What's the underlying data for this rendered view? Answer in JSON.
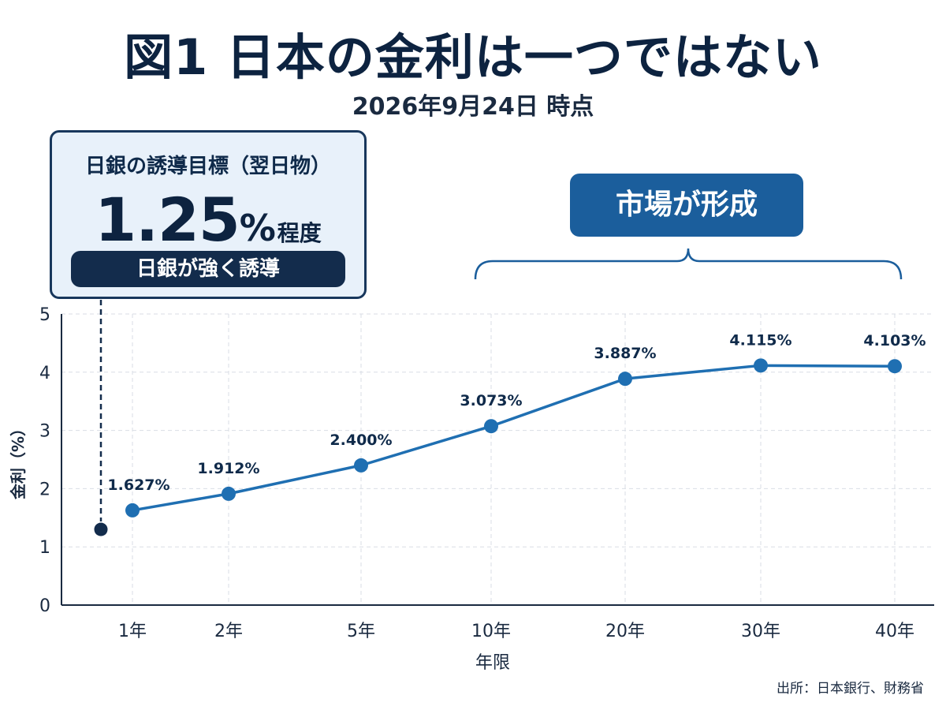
{
  "title": "図1 日本の金利は一つではない",
  "subtitle": "2026年9月24日 時点",
  "boj": {
    "label": "日銀の誘導目標（翌日物）",
    "rate": "1.25",
    "pct": "%",
    "approx": "程度",
    "pill": "日銀が強く誘導",
    "value": 1.3
  },
  "market": {
    "label": "市場が形成"
  },
  "source": "出所：日本銀行、財務省",
  "colors": {
    "line": "#1f6fb2",
    "dark": "#132c4c",
    "accent": "#1b5e9c"
  },
  "chart_data": {
    "type": "line",
    "title": "図1 日本の金利は一つではない",
    "subtitle": "2026年9月24日 時点",
    "xlabel": "年限",
    "ylabel": "金利（%）",
    "ylim": [
      0,
      5
    ],
    "yticks": [
      "0",
      "1",
      "2",
      "3",
      "4",
      "5"
    ],
    "grid": true,
    "categories": [
      "1年",
      "2年",
      "5年",
      "10年",
      "20年",
      "30年",
      "40年"
    ],
    "series": [
      {
        "values": [
          1.627,
          1.912,
          2.4,
          3.073,
          3.887,
          4.115,
          4.103
        ],
        "labels": [
          "1.627%",
          "1.912%",
          "2.400%",
          "3.073%",
          "3.887%",
          "4.115%",
          "4.103%"
        ]
      }
    ]
  }
}
